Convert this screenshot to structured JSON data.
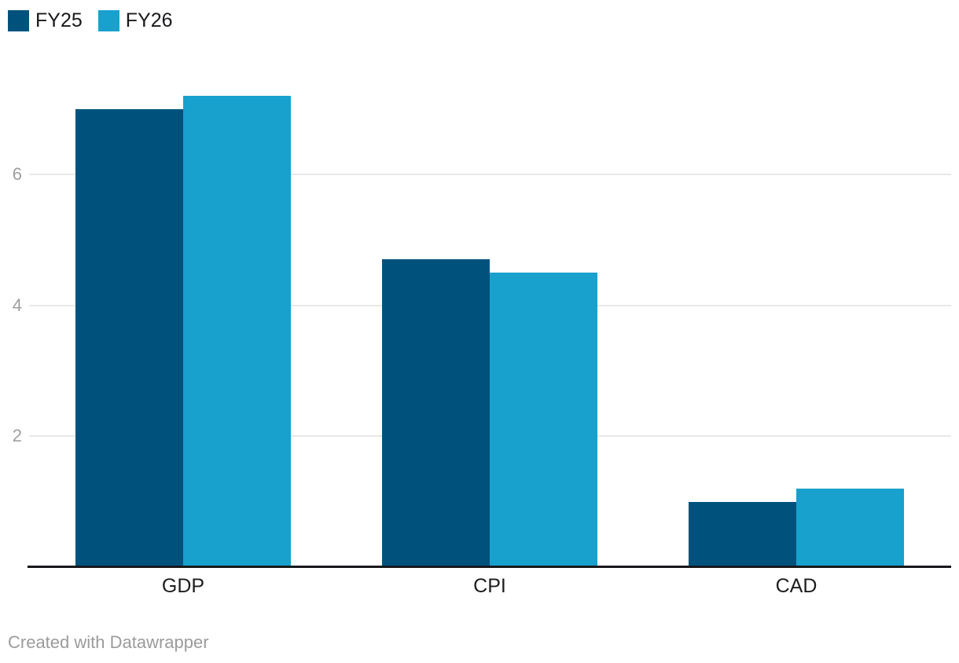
{
  "legend": {
    "items": [
      {
        "label": "FY25",
        "color": "#00527d"
      },
      {
        "label": "FY26",
        "color": "#18a1cd"
      }
    ]
  },
  "footer": {
    "attribution": "Created with Datawrapper"
  },
  "colors": {
    "fy25": "#00527d",
    "fy26": "#18a1cd",
    "gridline": "#e8e8e8",
    "tick_label": "#9e9e9e",
    "axis_line": "#18191c",
    "category_label": "#1d1d1d",
    "footer_text": "#9b9b9b",
    "background": "#ffffff"
  },
  "chart_data": {
    "type": "bar",
    "title": "",
    "xlabel": "",
    "ylabel": "",
    "categories": [
      "GDP",
      "CPI",
      "CAD"
    ],
    "series": [
      {
        "name": "FY25",
        "color": "#00527d",
        "values": [
          7.0,
          4.7,
          1.0
        ]
      },
      {
        "name": "FY26",
        "color": "#18a1cd",
        "values": [
          7.2,
          4.5,
          1.2
        ]
      }
    ],
    "ylim": [
      0,
      7.2
    ],
    "yticks": [
      2,
      4,
      6
    ],
    "grid": true,
    "grouped": true,
    "legend_position": "top-left",
    "attribution": "Created with Datawrapper"
  }
}
